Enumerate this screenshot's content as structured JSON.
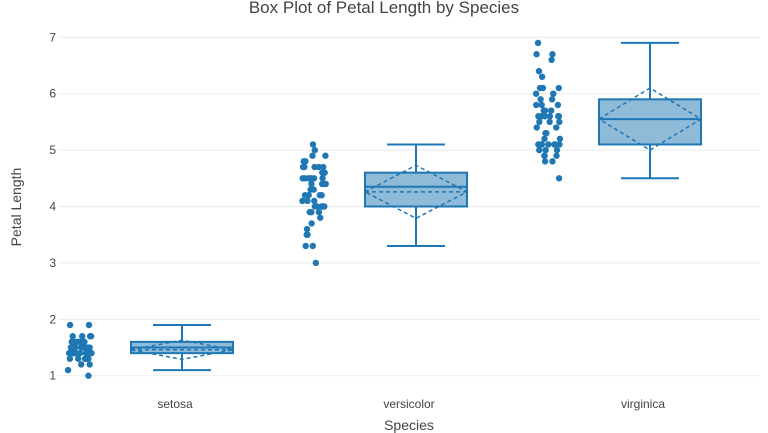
{
  "chart_data": {
    "type": "box",
    "title": "Box Plot of Petal Length by Species",
    "xlabel": "Species",
    "ylabel": "Petal Length",
    "ylim": [
      0.8,
      7.2
    ],
    "yticks": [
      1,
      2,
      3,
      4,
      5,
      6,
      7
    ],
    "grid": true,
    "box_color": "#1f77b4",
    "box_fill": "rgba(31,119,180,0.5)",
    "categories": [
      "setosa",
      "versicolor",
      "virginica"
    ],
    "boxes": [
      {
        "name": "setosa",
        "min": 1.1,
        "q1": 1.4,
        "median": 1.5,
        "q3": 1.6,
        "max": 1.9,
        "mean": 1.46,
        "sd": 0.17,
        "outliers": [
          1.0
        ],
        "points": [
          1.4,
          1.4,
          1.3,
          1.5,
          1.4,
          1.7,
          1.4,
          1.5,
          1.4,
          1.5,
          1.5,
          1.6,
          1.4,
          1.1,
          1.2,
          1.5,
          1.3,
          1.4,
          1.7,
          1.5,
          1.7,
          1.5,
          1.0,
          1.7,
          1.9,
          1.6,
          1.6,
          1.5,
          1.4,
          1.6,
          1.6,
          1.5,
          1.5,
          1.4,
          1.5,
          1.2,
          1.3,
          1.4,
          1.3,
          1.5,
          1.3,
          1.3,
          1.3,
          1.6,
          1.9,
          1.4,
          1.6,
          1.4,
          1.5,
          1.4
        ]
      },
      {
        "name": "versicolor",
        "min": 3.3,
        "q1": 4.0,
        "median": 4.35,
        "q3": 4.6,
        "max": 5.1,
        "mean": 4.26,
        "sd": 0.47,
        "outliers": [
          3.0
        ],
        "points": [
          4.7,
          4.5,
          4.9,
          4.0,
          4.6,
          4.5,
          4.7,
          3.3,
          4.6,
          3.9,
          3.5,
          4.2,
          4.0,
          4.7,
          3.6,
          4.4,
          4.5,
          4.1,
          4.5,
          3.9,
          4.8,
          4.0,
          4.9,
          4.7,
          4.3,
          4.4,
          4.8,
          5.0,
          4.5,
          3.5,
          3.8,
          3.7,
          3.9,
          5.1,
          4.5,
          4.5,
          4.7,
          4.4,
          4.1,
          4.0,
          4.4,
          4.6,
          4.0,
          3.3,
          4.2,
          4.2,
          4.2,
          4.3,
          3.0,
          4.1
        ]
      },
      {
        "name": "virginica",
        "min": 4.5,
        "q1": 5.1,
        "median": 5.55,
        "q3": 5.9,
        "max": 6.9,
        "mean": 5.55,
        "sd": 0.55,
        "outliers": [],
        "points": [
          6.0,
          5.1,
          5.9,
          5.6,
          5.8,
          6.6,
          4.5,
          6.3,
          5.8,
          6.1,
          5.1,
          5.3,
          5.5,
          5.0,
          5.1,
          5.3,
          5.5,
          6.7,
          6.9,
          5.0,
          5.7,
          4.9,
          6.7,
          4.9,
          5.7,
          6.0,
          4.8,
          4.9,
          5.6,
          5.8,
          6.1,
          6.4,
          5.6,
          5.1,
          5.6,
          6.1,
          5.6,
          5.5,
          4.8,
          5.4,
          5.6,
          5.1,
          5.1,
          5.9,
          5.7,
          5.2,
          5.0,
          5.2,
          5.4,
          5.1
        ]
      }
    ]
  }
}
